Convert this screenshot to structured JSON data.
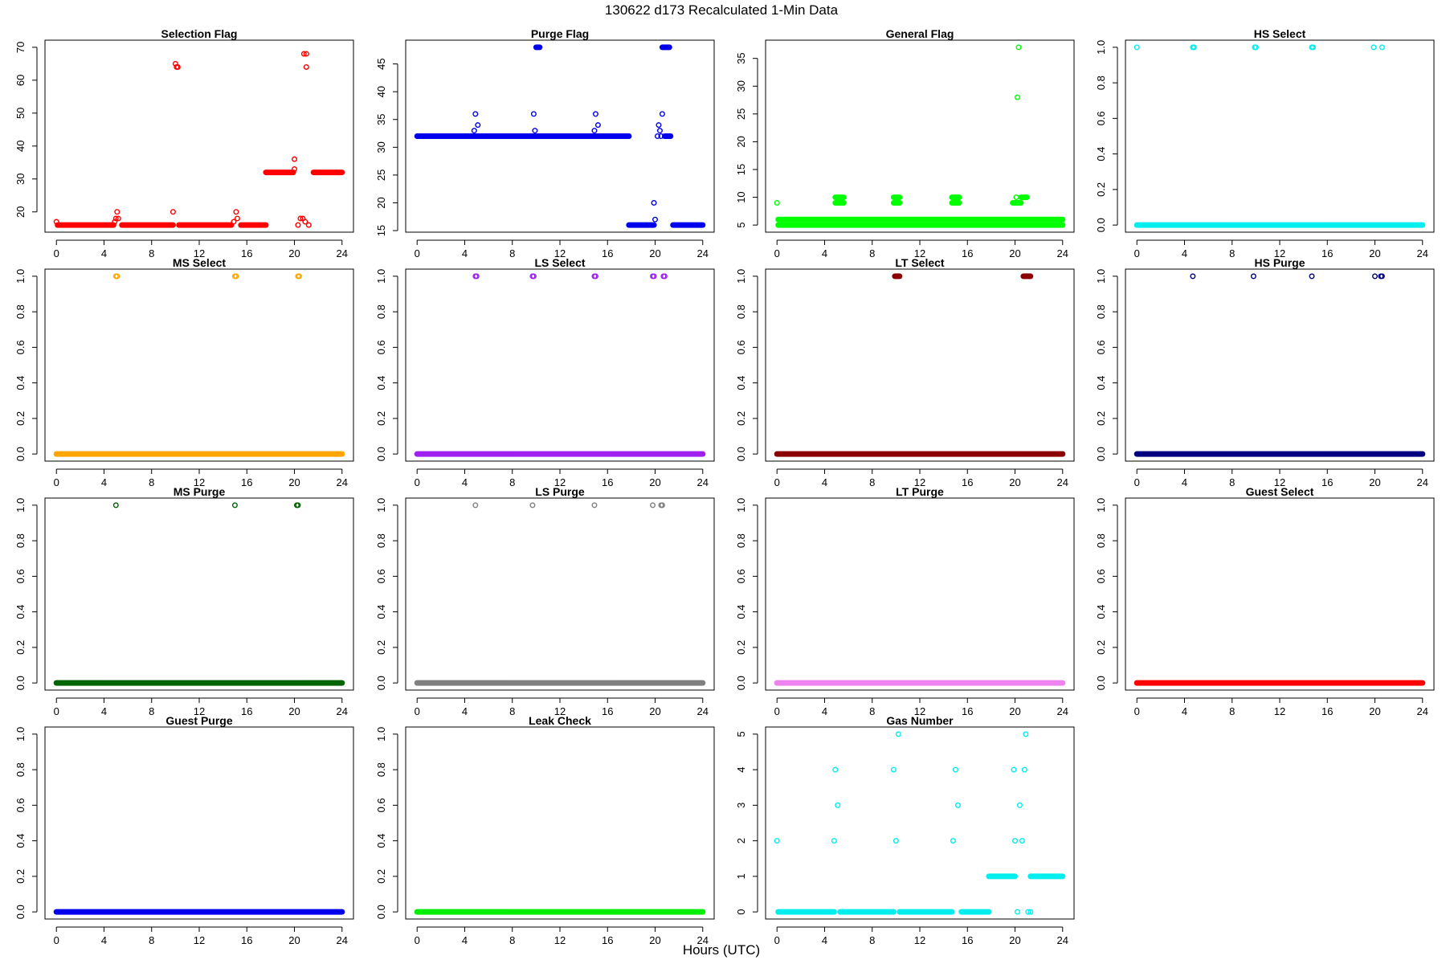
{
  "figure": {
    "title": "130622   d173   Recalculated 1-Min Data",
    "xlabel": "Hours (UTC)"
  },
  "chart_data": [
    {
      "type": "scatter",
      "title": "Selection Flag",
      "color": "#ff0000",
      "xlim": [
        0,
        24
      ],
      "ylim": [
        16,
        70
      ],
      "xticks": [
        0,
        4,
        8,
        12,
        16,
        20,
        24
      ],
      "yticks": [
        20,
        30,
        40,
        50,
        60,
        70
      ],
      "runs": [
        [
          0.1,
          4.8,
          16
        ],
        [
          5.5,
          9.8,
          16
        ],
        [
          10.3,
          14.7,
          16
        ],
        [
          15.5,
          17.6,
          16
        ],
        [
          17.6,
          19.9,
          32
        ],
        [
          21.6,
          24,
          32
        ]
      ],
      "points": [
        [
          0,
          17
        ],
        [
          4.9,
          17
        ],
        [
          5,
          18
        ],
        [
          5.1,
          20
        ],
        [
          5.2,
          18
        ],
        [
          9.8,
          20
        ],
        [
          10,
          65
        ],
        [
          10.1,
          64
        ],
        [
          10.2,
          64
        ],
        [
          14.9,
          17
        ],
        [
          15.1,
          20
        ],
        [
          15.2,
          18
        ],
        [
          20,
          36
        ],
        [
          20,
          33
        ],
        [
          20.3,
          16
        ],
        [
          20.5,
          18
        ],
        [
          20.7,
          18
        ],
        [
          20.9,
          17
        ],
        [
          20.8,
          68
        ],
        [
          21,
          68
        ],
        [
          21,
          64
        ],
        [
          21.2,
          16
        ]
      ]
    },
    {
      "type": "scatter",
      "title": "Purge Flag",
      "color": "#0000ee",
      "xlim": [
        0,
        24
      ],
      "ylim": [
        16,
        48
      ],
      "xticks": [
        0,
        4,
        8,
        12,
        16,
        20,
        24
      ],
      "yticks": [
        15,
        20,
        25,
        30,
        35,
        40,
        45
      ],
      "runs": [
        [
          0,
          17.8,
          32
        ],
        [
          17.8,
          19.9,
          16
        ],
        [
          21.5,
          24,
          16
        ],
        [
          10.0,
          10.3,
          48
        ],
        [
          20.6,
          21.2,
          48
        ],
        [
          20.8,
          21.3,
          32
        ]
      ],
      "points": [
        [
          4.8,
          33
        ],
        [
          4.9,
          36
        ],
        [
          5.1,
          34
        ],
        [
          9.8,
          36
        ],
        [
          9.9,
          33
        ],
        [
          14.9,
          33
        ],
        [
          15,
          36
        ],
        [
          15.2,
          34
        ],
        [
          19.9,
          20
        ],
        [
          20.0,
          17
        ],
        [
          20.2,
          32
        ],
        [
          20.3,
          34
        ],
        [
          20.4,
          33
        ],
        [
          20.5,
          32
        ],
        [
          20.6,
          36
        ]
      ]
    },
    {
      "type": "scatter",
      "title": "General Flag",
      "color": "#00ff00",
      "xlim": [
        0,
        24
      ],
      "ylim": [
        5,
        37
      ],
      "xticks": [
        0,
        4,
        8,
        12,
        16,
        20,
        24
      ],
      "yticks": [
        5,
        10,
        15,
        20,
        25,
        30,
        35
      ],
      "runs": [
        [
          0.1,
          24,
          5
        ],
        [
          0.1,
          24,
          6
        ],
        [
          4.9,
          5.6,
          9
        ],
        [
          4.9,
          5.6,
          10
        ],
        [
          9.8,
          10.3,
          9
        ],
        [
          9.8,
          10.3,
          10
        ],
        [
          14.7,
          15.3,
          9
        ],
        [
          14.7,
          15.3,
          10
        ],
        [
          19.8,
          20.5,
          9
        ],
        [
          20.5,
          21.0,
          10
        ]
      ],
      "points": [
        [
          0,
          9
        ],
        [
          20.2,
          28
        ],
        [
          20.3,
          37
        ],
        [
          20.1,
          10
        ]
      ]
    },
    {
      "type": "scatter",
      "title": "HS Select",
      "color": "#00eeee",
      "xlim": [
        0,
        24
      ],
      "ylim": [
        0,
        1
      ],
      "xticks": [
        0,
        4,
        8,
        12,
        16,
        20,
        24
      ],
      "yticks": [
        0.0,
        0.2,
        0.4,
        0.6,
        0.8,
        1.0
      ],
      "runs": [
        [
          0,
          24,
          0
        ]
      ],
      "points": [
        [
          0,
          1
        ],
        [
          4.7,
          1
        ],
        [
          4.8,
          1
        ],
        [
          9.9,
          1
        ],
        [
          10,
          1
        ],
        [
          14.7,
          1
        ],
        [
          14.8,
          1
        ],
        [
          19.9,
          1
        ],
        [
          20.6,
          1
        ]
      ]
    },
    {
      "type": "scatter",
      "title": "MS Select",
      "color": "#ffa500",
      "xlim": [
        0,
        24
      ],
      "ylim": [
        0,
        1
      ],
      "xticks": [
        0,
        4,
        8,
        12,
        16,
        20,
        24
      ],
      "yticks": [
        0.0,
        0.2,
        0.4,
        0.6,
        0.8,
        1.0
      ],
      "runs": [
        [
          0,
          24,
          0
        ]
      ],
      "points": [
        [
          5,
          1
        ],
        [
          5.1,
          1
        ],
        [
          15,
          1
        ],
        [
          15.1,
          1
        ],
        [
          20.3,
          1
        ],
        [
          20.4,
          1
        ]
      ]
    },
    {
      "type": "scatter",
      "title": "LS Select",
      "color": "#a020f0",
      "xlim": [
        0,
        24
      ],
      "ylim": [
        0,
        1
      ],
      "xticks": [
        0,
        4,
        8,
        12,
        16,
        20,
        24
      ],
      "yticks": [
        0.0,
        0.2,
        0.4,
        0.6,
        0.8,
        1.0
      ],
      "runs": [
        [
          0,
          24,
          0
        ]
      ],
      "points": [
        [
          4.9,
          1
        ],
        [
          5,
          1
        ],
        [
          9.7,
          1
        ],
        [
          9.8,
          1
        ],
        [
          14.9,
          1
        ],
        [
          15,
          1
        ],
        [
          19.8,
          1
        ],
        [
          19.9,
          1
        ],
        [
          20.7,
          1
        ],
        [
          20.8,
          1
        ]
      ]
    },
    {
      "type": "scatter",
      "title": "LT Select",
      "color": "#8b0000",
      "xlim": [
        0,
        24
      ],
      "ylim": [
        0,
        1
      ],
      "xticks": [
        0,
        4,
        8,
        12,
        16,
        20,
        24
      ],
      "yticks": [
        0.0,
        0.2,
        0.4,
        0.6,
        0.8,
        1.0
      ],
      "runs": [
        [
          0,
          24,
          0
        ],
        [
          9.9,
          10.3,
          1
        ],
        [
          20.7,
          21.3,
          1
        ]
      ],
      "points": []
    },
    {
      "type": "scatter",
      "title": "HS Purge",
      "color": "#000080",
      "xlim": [
        0,
        24
      ],
      "ylim": [
        0,
        1
      ],
      "xticks": [
        0,
        4,
        8,
        12,
        16,
        20,
        24
      ],
      "yticks": [
        0.0,
        0.2,
        0.4,
        0.6,
        0.8,
        1.0
      ],
      "runs": [
        [
          0,
          24,
          0
        ]
      ],
      "points": [
        [
          4.7,
          1
        ],
        [
          9.8,
          1
        ],
        [
          14.7,
          1
        ],
        [
          20,
          1
        ],
        [
          20.5,
          1
        ],
        [
          20.6,
          1
        ]
      ]
    },
    {
      "type": "scatter",
      "title": "MS Purge",
      "color": "#006400",
      "xlim": [
        0,
        24
      ],
      "ylim": [
        0,
        1
      ],
      "xticks": [
        0,
        4,
        8,
        12,
        16,
        20,
        24
      ],
      "yticks": [
        0.0,
        0.2,
        0.4,
        0.6,
        0.8,
        1.0
      ],
      "runs": [
        [
          0,
          24,
          0
        ]
      ],
      "points": [
        [
          5,
          1
        ],
        [
          15,
          1
        ],
        [
          20.2,
          1
        ],
        [
          20.3,
          1
        ]
      ]
    },
    {
      "type": "scatter",
      "title": "LS Purge",
      "color": "#808080",
      "xlim": [
        0,
        24
      ],
      "ylim": [
        0,
        1
      ],
      "xticks": [
        0,
        4,
        8,
        12,
        16,
        20,
        24
      ],
      "yticks": [
        0.0,
        0.2,
        0.4,
        0.6,
        0.8,
        1.0
      ],
      "runs": [
        [
          0,
          24,
          0
        ]
      ],
      "points": [
        [
          4.9,
          1
        ],
        [
          9.7,
          1
        ],
        [
          14.9,
          1
        ],
        [
          19.8,
          1
        ],
        [
          20.5,
          1
        ],
        [
          20.6,
          1
        ]
      ]
    },
    {
      "type": "scatter",
      "title": "LT Purge",
      "color": "#ee82ee",
      "xlim": [
        0,
        24
      ],
      "ylim": [
        0,
        1
      ],
      "xticks": [
        0,
        4,
        8,
        12,
        16,
        20,
        24
      ],
      "yticks": [
        0.0,
        0.2,
        0.4,
        0.6,
        0.8,
        1.0
      ],
      "runs": [
        [
          0,
          24,
          0
        ]
      ],
      "points": []
    },
    {
      "type": "scatter",
      "title": "Guest Select",
      "color": "#ff0000",
      "xlim": [
        0,
        24
      ],
      "ylim": [
        0,
        1
      ],
      "xticks": [
        0,
        4,
        8,
        12,
        16,
        20,
        24
      ],
      "yticks": [
        0.0,
        0.2,
        0.4,
        0.6,
        0.8,
        1.0
      ],
      "runs": [
        [
          0,
          24,
          0
        ]
      ],
      "points": []
    },
    {
      "type": "scatter",
      "title": "Guest Purge",
      "color": "#0000ee",
      "xlim": [
        0,
        24
      ],
      "ylim": [
        0,
        1
      ],
      "xticks": [
        0,
        4,
        8,
        12,
        16,
        20,
        24
      ],
      "yticks": [
        0.0,
        0.2,
        0.4,
        0.6,
        0.8,
        1.0
      ],
      "runs": [
        [
          0,
          24,
          0
        ]
      ],
      "points": []
    },
    {
      "type": "scatter",
      "title": "Leak Check",
      "color": "#00ee00",
      "xlim": [
        0,
        24
      ],
      "ylim": [
        0,
        1
      ],
      "xticks": [
        0,
        4,
        8,
        12,
        16,
        20,
        24
      ],
      "yticks": [
        0.0,
        0.2,
        0.4,
        0.6,
        0.8,
        1.0
      ],
      "runs": [
        [
          0,
          24,
          0
        ]
      ],
      "points": []
    },
    {
      "type": "scatter",
      "title": "Gas Number",
      "color": "#00eeee",
      "xlim": [
        0,
        24
      ],
      "ylim": [
        0,
        5
      ],
      "xticks": [
        0,
        4,
        8,
        12,
        16,
        20,
        24
      ],
      "yticks": [
        0,
        1,
        2,
        3,
        4,
        5
      ],
      "runs": [
        [
          0.1,
          4.8,
          0
        ],
        [
          5.3,
          9.8,
          0
        ],
        [
          10.3,
          14.7,
          0
        ],
        [
          15.5,
          17.8,
          0
        ],
        [
          17.8,
          20.0,
          1
        ],
        [
          21.3,
          24,
          1
        ]
      ],
      "points": [
        [
          0,
          2
        ],
        [
          4.8,
          2
        ],
        [
          4.9,
          4
        ],
        [
          5.1,
          3
        ],
        [
          9.8,
          4
        ],
        [
          10,
          2
        ],
        [
          10.2,
          5
        ],
        [
          14.8,
          2
        ],
        [
          15,
          4
        ],
        [
          15.2,
          3
        ],
        [
          19.9,
          4
        ],
        [
          20,
          2
        ],
        [
          20.2,
          0
        ],
        [
          20.4,
          3
        ],
        [
          20.6,
          2
        ],
        [
          20.8,
          4
        ],
        [
          20.9,
          5
        ],
        [
          21.1,
          0
        ],
        [
          21.3,
          0
        ]
      ]
    }
  ]
}
